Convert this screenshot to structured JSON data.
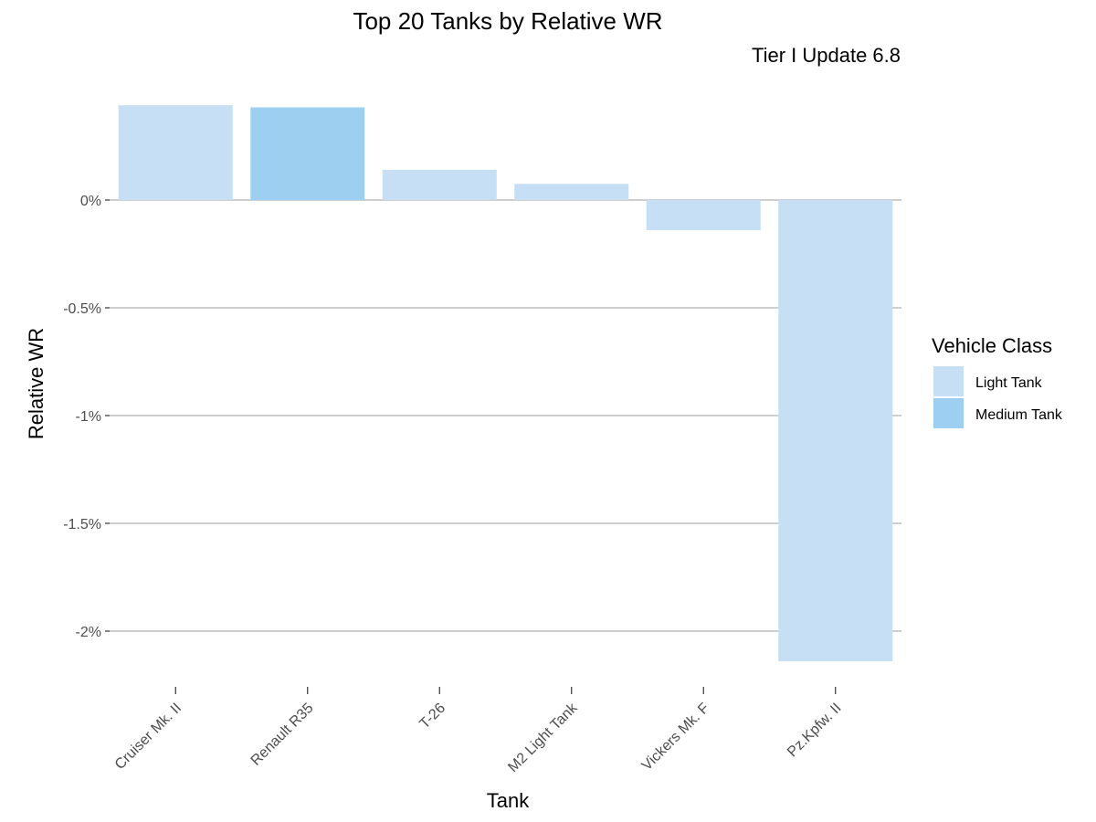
{
  "chart_data": {
    "type": "bar",
    "title": "Top 20 Tanks by Relative WR",
    "subtitle": "Tier I Update 6.8",
    "xlabel": "Tank",
    "ylabel": "Relative WR",
    "categories": [
      "Cruiser Mk. II",
      "Renault R35",
      "T-26",
      "M2 Light Tank",
      "Vickers Mk. F",
      "Pz.Kpfw. II"
    ],
    "values": [
      0.44,
      0.43,
      0.14,
      0.075,
      -0.14,
      -2.14
    ],
    "classes": [
      "Light Tank",
      "Medium Tank",
      "Light Tank",
      "Light Tank",
      "Light Tank",
      "Light Tank"
    ],
    "ylim": [
      -2.2,
      0.46
    ],
    "yticks": [
      0,
      -0.5,
      -1,
      -1.5,
      -2
    ],
    "ytick_labels": [
      "0%",
      "-0.5%",
      "-1%",
      "-1.5%",
      "-2%"
    ],
    "grid": true,
    "legend": {
      "title": "Vehicle Class",
      "position": "right",
      "entries": [
        {
          "label": "Light Tank",
          "color": "#c6dff4"
        },
        {
          "label": "Medium Tank",
          "color": "#9dd0f0"
        }
      ]
    }
  }
}
